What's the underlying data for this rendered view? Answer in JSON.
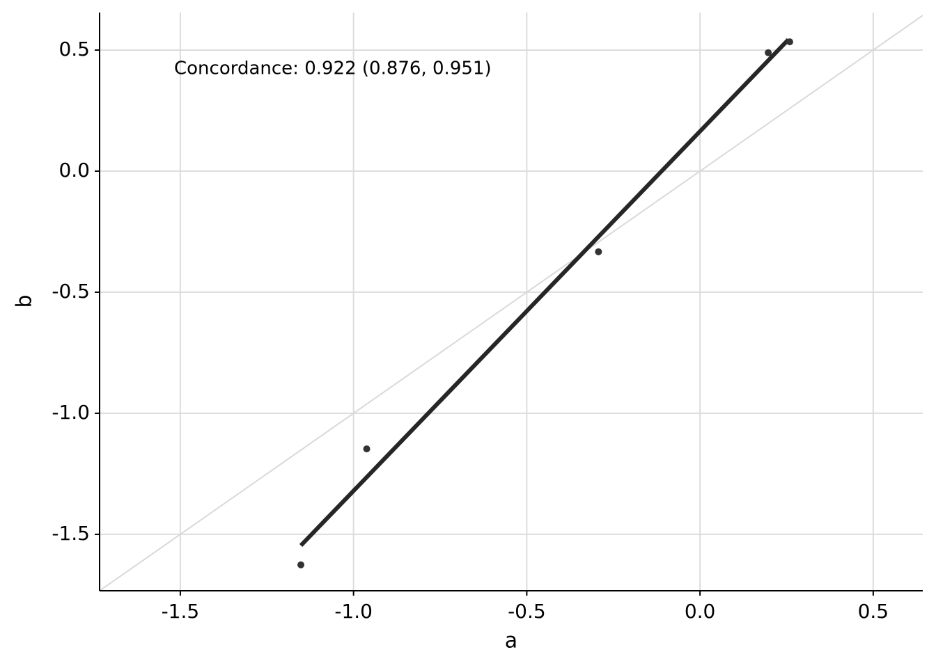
{
  "chart_data": {
    "type": "scatter",
    "annotation": "Concordance: 0.922 (0.876, 0.951)",
    "x_label": "a",
    "y_label": "b",
    "x": [
      -1.152,
      -0.962,
      -0.293,
      0.197,
      0.259
    ],
    "y": [
      -1.626,
      -1.147,
      -0.333,
      0.489,
      0.534
    ],
    "color": "#333333",
    "fit_line": {
      "x": [
        -1.152,
        0.255
      ],
      "y": [
        -1.546,
        0.543
      ],
      "color": "#262626"
    },
    "reference_line": {
      "slope": 1,
      "intercept": 0,
      "color": "#d9d9d9"
    },
    "xlim": [
      -1.733,
      0.643
    ],
    "ylim": [
      -1.733,
      0.655
    ],
    "xticks": [
      -1.5,
      {
        "value": -1.0,
        "label": "-1.0"
      },
      -0.5,
      {
        "value": 0.0,
        "label": "0.0"
      },
      0.5
    ],
    "yticks": [
      -1.5,
      {
        "value": -1.0,
        "label": "-1.0"
      },
      -0.5,
      {
        "value": 0.0,
        "label": "0.0"
      },
      0.5
    ],
    "grid": true
  }
}
